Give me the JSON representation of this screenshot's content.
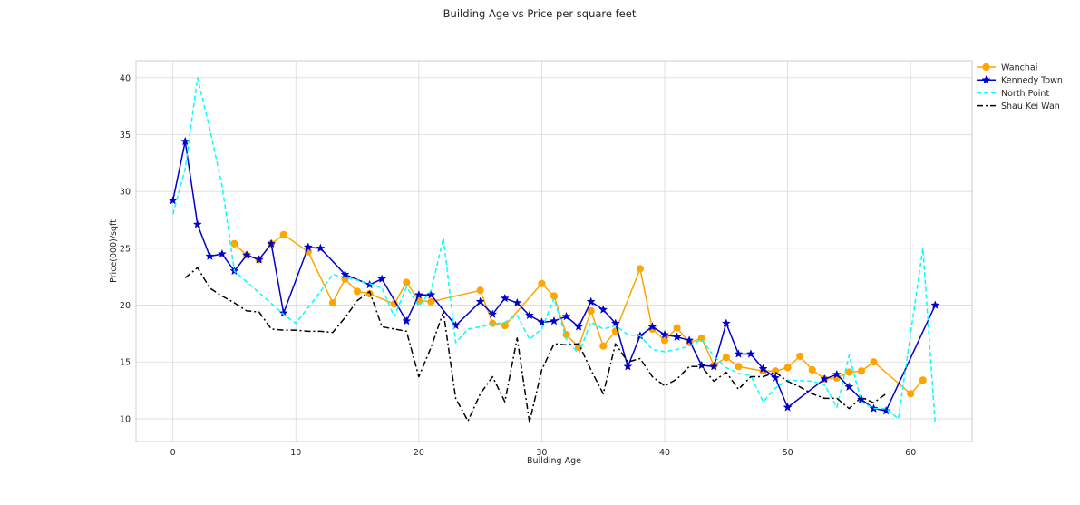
{
  "chart_data": {
    "type": "line",
    "title": "Building Age vs Price per square feet",
    "xlabel": "Building Age",
    "ylabel": "Price(000)/sqft",
    "xlim": [
      -3,
      65
    ],
    "ylim": [
      8,
      41.5
    ],
    "xticks": [
      0,
      10,
      20,
      30,
      40,
      50,
      60
    ],
    "yticks": [
      10,
      15,
      20,
      25,
      30,
      35,
      40
    ],
    "grid": true,
    "legend_position": "outside-top-right",
    "series": [
      {
        "name": "Wanchai",
        "color": "#ffa500",
        "linestyle": "solid",
        "marker": "circle",
        "points": [
          [
            5,
            25.4
          ],
          [
            6,
            24.4
          ],
          [
            7,
            24.0
          ],
          [
            8,
            25.4
          ],
          [
            9,
            26.2
          ],
          [
            11,
            24.7
          ],
          [
            13,
            20.2
          ],
          [
            14,
            22.3
          ],
          [
            15,
            21.2
          ],
          [
            16,
            21.0
          ],
          [
            18,
            20.1
          ],
          [
            19,
            22.0
          ],
          [
            20,
            20.4
          ],
          [
            21,
            20.3
          ],
          [
            25,
            21.3
          ],
          [
            26,
            18.4
          ],
          [
            27,
            18.2
          ],
          [
            30,
            21.9
          ],
          [
            31,
            20.8
          ],
          [
            32,
            17.4
          ],
          [
            33,
            16.3
          ],
          [
            34,
            19.5
          ],
          [
            35,
            16.4
          ],
          [
            36,
            17.7
          ],
          [
            38,
            23.2
          ],
          [
            39,
            17.9
          ],
          [
            40,
            16.9
          ],
          [
            41,
            18.0
          ],
          [
            42,
            16.7
          ],
          [
            43,
            17.1
          ],
          [
            44,
            14.7
          ],
          [
            45,
            15.4
          ],
          [
            46,
            14.6
          ],
          [
            48,
            14.2
          ],
          [
            49,
            14.2
          ],
          [
            50,
            14.5
          ],
          [
            51,
            15.5
          ],
          [
            52,
            14.3
          ],
          [
            53,
            13.5
          ],
          [
            54,
            13.6
          ],
          [
            55,
            14.1
          ],
          [
            56,
            14.2
          ],
          [
            57,
            15.0
          ],
          [
            60,
            12.2
          ],
          [
            61,
            13.4
          ]
        ]
      },
      {
        "name": "Kennedy Town",
        "color": "#0000cd",
        "linestyle": "solid",
        "marker": "star",
        "points": [
          [
            0,
            29.2
          ],
          [
            1,
            34.4
          ],
          [
            2,
            27.1
          ],
          [
            3,
            24.3
          ],
          [
            4,
            24.5
          ],
          [
            5,
            23.0
          ],
          [
            6,
            24.4
          ],
          [
            7,
            24.0
          ],
          [
            8,
            25.4
          ],
          [
            9,
            19.3
          ],
          [
            11,
            25.1
          ],
          [
            12,
            25.0
          ],
          [
            14,
            22.7
          ],
          [
            16,
            21.8
          ],
          [
            17,
            22.3
          ],
          [
            19,
            18.6
          ],
          [
            20,
            20.9
          ],
          [
            21,
            20.9
          ],
          [
            23,
            18.2
          ],
          [
            25,
            20.3
          ],
          [
            26,
            19.2
          ],
          [
            27,
            20.6
          ],
          [
            28,
            20.2
          ],
          [
            29,
            19.1
          ],
          [
            30,
            18.5
          ],
          [
            31,
            18.6
          ],
          [
            32,
            19.0
          ],
          [
            33,
            18.1
          ],
          [
            34,
            20.3
          ],
          [
            35,
            19.6
          ],
          [
            36,
            18.4
          ],
          [
            37,
            14.6
          ],
          [
            38,
            17.3
          ],
          [
            39,
            18.1
          ],
          [
            40,
            17.4
          ],
          [
            41,
            17.2
          ],
          [
            42,
            16.9
          ],
          [
            43,
            14.7
          ],
          [
            44,
            14.6
          ],
          [
            45,
            18.4
          ],
          [
            46,
            15.7
          ],
          [
            47,
            15.7
          ],
          [
            48,
            14.4
          ],
          [
            49,
            13.6
          ],
          [
            50,
            11.0
          ],
          [
            53,
            13.5
          ],
          [
            54,
            13.9
          ],
          [
            55,
            12.8
          ],
          [
            56,
            11.7
          ],
          [
            57,
            10.9
          ],
          [
            58,
            10.7
          ],
          [
            62,
            20.0
          ]
        ]
      },
      {
        "name": "North Point",
        "color": "#00ffff",
        "linestyle": "dashed",
        "marker": "none",
        "points": [
          [
            0,
            28.0
          ],
          [
            1,
            32.0
          ],
          [
            2,
            40.0
          ],
          [
            3,
            35.5
          ],
          [
            4,
            30.5
          ],
          [
            5,
            23.0
          ],
          [
            9,
            19.2
          ],
          [
            10,
            18.4
          ],
          [
            12,
            21.2
          ],
          [
            13,
            22.7
          ],
          [
            15,
            22.2
          ],
          [
            16,
            21.9
          ],
          [
            17,
            21.5
          ],
          [
            18,
            19.0
          ],
          [
            19,
            21.6
          ],
          [
            20,
            19.9
          ],
          [
            21,
            21.3
          ],
          [
            22,
            25.9
          ],
          [
            23,
            16.7
          ],
          [
            24,
            17.9
          ],
          [
            26,
            18.3
          ],
          [
            27,
            18.5
          ],
          [
            28,
            19.1
          ],
          [
            29,
            17.0
          ],
          [
            30,
            17.9
          ],
          [
            31,
            20.6
          ],
          [
            32,
            17.0
          ],
          [
            33,
            15.7
          ],
          [
            34,
            18.5
          ],
          [
            35,
            17.9
          ],
          [
            36,
            18.2
          ],
          [
            37,
            17.4
          ],
          [
            38,
            17.3
          ],
          [
            39,
            16.1
          ],
          [
            40,
            15.9
          ],
          [
            41,
            16.1
          ],
          [
            42,
            16.4
          ],
          [
            43,
            17.0
          ],
          [
            44,
            15.5
          ],
          [
            45,
            14.5
          ],
          [
            46,
            14.0
          ],
          [
            47,
            13.8
          ],
          [
            48,
            11.5
          ],
          [
            49,
            12.7
          ],
          [
            50,
            13.4
          ],
          [
            52,
            13.3
          ],
          [
            53,
            13.0
          ],
          [
            54,
            11.0
          ],
          [
            55,
            15.6
          ],
          [
            56,
            11.5
          ],
          [
            57,
            10.9
          ],
          [
            58,
            10.9
          ],
          [
            59,
            10.0
          ],
          [
            61,
            25.0
          ],
          [
            62,
            9.5
          ]
        ]
      },
      {
        "name": "Shau Kei Wan",
        "color": "#000000",
        "linestyle": "dashdot",
        "marker": "none",
        "points": [
          [
            1,
            22.4
          ],
          [
            2,
            23.3
          ],
          [
            3,
            21.5
          ],
          [
            4,
            20.8
          ],
          [
            5,
            20.2
          ],
          [
            6,
            19.5
          ],
          [
            7,
            19.4
          ],
          [
            8,
            17.9
          ],
          [
            9,
            17.8
          ],
          [
            10,
            17.8
          ],
          [
            11,
            17.7
          ],
          [
            12,
            17.7
          ],
          [
            13,
            17.6
          ],
          [
            14,
            18.9
          ],
          [
            15,
            20.4
          ],
          [
            16,
            21.2
          ],
          [
            17,
            18.1
          ],
          [
            18,
            17.9
          ],
          [
            19,
            17.7
          ],
          [
            20,
            13.7
          ],
          [
            21,
            16.3
          ],
          [
            22,
            19.4
          ],
          [
            23,
            11.8
          ],
          [
            24,
            9.8
          ],
          [
            25,
            12.2
          ],
          [
            26,
            13.7
          ],
          [
            27,
            11.5
          ],
          [
            28,
            17.1
          ],
          [
            29,
            9.7
          ],
          [
            30,
            14.3
          ],
          [
            31,
            16.6
          ],
          [
            32,
            16.5
          ],
          [
            33,
            16.6
          ],
          [
            34,
            14.3
          ],
          [
            35,
            12.2
          ],
          [
            36,
            16.6
          ],
          [
            37,
            15.0
          ],
          [
            38,
            15.3
          ],
          [
            39,
            13.7
          ],
          [
            40,
            12.9
          ],
          [
            41,
            13.5
          ],
          [
            42,
            14.6
          ],
          [
            43,
            14.6
          ],
          [
            44,
            13.3
          ],
          [
            45,
            14.1
          ],
          [
            46,
            12.6
          ],
          [
            47,
            13.7
          ],
          [
            48,
            13.7
          ],
          [
            49,
            14.1
          ],
          [
            50,
            13.3
          ],
          [
            51,
            12.8
          ],
          [
            52,
            12.2
          ],
          [
            53,
            11.8
          ],
          [
            54,
            11.8
          ],
          [
            55,
            10.9
          ],
          [
            56,
            11.9
          ],
          [
            57,
            11.4
          ],
          [
            58,
            12.2
          ]
        ]
      }
    ]
  }
}
